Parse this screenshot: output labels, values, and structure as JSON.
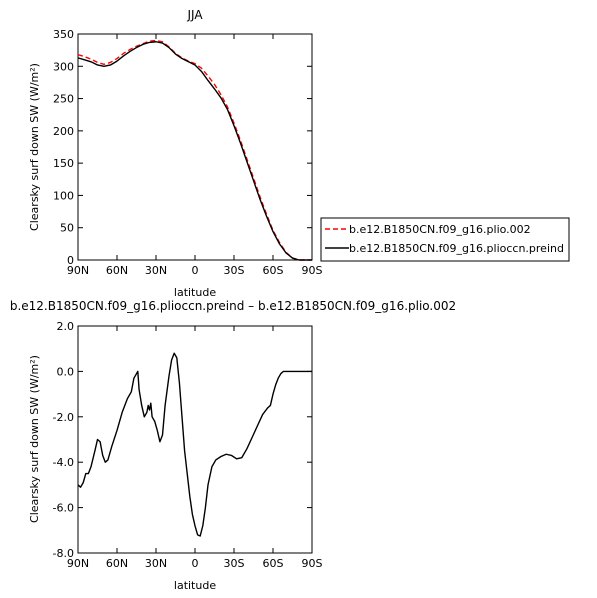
{
  "chart_data": [
    {
      "type": "line",
      "title": "JJA",
      "xlabel": "latitude",
      "ylabel": "Clearsky surf down SW (W/m²)",
      "xlim": [
        90,
        -90
      ],
      "ylim": [
        0,
        350
      ],
      "x_ticks": [
        90,
        60,
        30,
        0,
        -30,
        -60,
        -90
      ],
      "x_tick_labels": [
        "90N",
        "60N",
        "30N",
        "0",
        "30S",
        "60S",
        "90S"
      ],
      "y_ticks": [
        0,
        50,
        100,
        150,
        200,
        250,
        300,
        350
      ],
      "y_tick_labels": [
        "0",
        "50",
        "100",
        "150",
        "200",
        "250",
        "300",
        "350"
      ],
      "grid": false,
      "legend_position": "right",
      "series": [
        {
          "name": "b.e12.B1850CN.f09_g16.plio.002",
          "color": "#ff0000",
          "style": "dashed",
          "points": [
            [
              90,
              318
            ],
            [
              85,
              315
            ],
            [
              80,
              311
            ],
            [
              75,
              306
            ],
            [
              70,
              303
            ],
            [
              65,
              306
            ],
            [
              60,
              312
            ],
            [
              55,
              320
            ],
            [
              50,
              326
            ],
            [
              45,
              331
            ],
            [
              40,
              335
            ],
            [
              35,
              339
            ],
            [
              30,
              340
            ],
            [
              25,
              338
            ],
            [
              20,
              330
            ],
            [
              15,
              320
            ],
            [
              10,
              313
            ],
            [
              5,
              308
            ],
            [
              0,
              304
            ],
            [
              -5,
              297
            ],
            [
              -10,
              285
            ],
            [
              -15,
              272
            ],
            [
              -20,
              256
            ],
            [
              -25,
              237
            ],
            [
              -30,
              212
            ],
            [
              -35,
              185
            ],
            [
              -40,
              156
            ],
            [
              -45,
              127
            ],
            [
              -50,
              98
            ],
            [
              -55,
              71
            ],
            [
              -60,
              46
            ],
            [
              -65,
              27
            ],
            [
              -70,
              12
            ],
            [
              -75,
              3
            ],
            [
              -80,
              0
            ],
            [
              -85,
              0
            ],
            [
              -90,
              0
            ]
          ]
        },
        {
          "name": "b.e12.B1850CN.f09_g16.plioccn.preind",
          "color": "#000000",
          "style": "solid",
          "points": [
            [
              90,
              313
            ],
            [
              85,
              310
            ],
            [
              80,
              307
            ],
            [
              75,
              302
            ],
            [
              70,
              300
            ],
            [
              65,
              302
            ],
            [
              60,
              308
            ],
            [
              55,
              316
            ],
            [
              50,
              323
            ],
            [
              45,
              329
            ],
            [
              40,
              334
            ],
            [
              35,
              337
            ],
            [
              30,
              338
            ],
            [
              25,
              336
            ],
            [
              20,
              329
            ],
            [
              15,
              319
            ],
            [
              10,
              312
            ],
            [
              5,
              307
            ],
            [
              0,
              302
            ],
            [
              -5,
              292
            ],
            [
              -10,
              278
            ],
            [
              -15,
              265
            ],
            [
              -20,
              251
            ],
            [
              -25,
              233
            ],
            [
              -30,
              208
            ],
            [
              -35,
              181
            ],
            [
              -40,
              152
            ],
            [
              -45,
              123
            ],
            [
              -50,
              94
            ],
            [
              -55,
              68
            ],
            [
              -60,
              44
            ],
            [
              -65,
              25
            ],
            [
              -70,
              11
            ],
            [
              -75,
              3
            ],
            [
              -80,
              0
            ],
            [
              -85,
              0
            ],
            [
              -90,
              0
            ]
          ]
        }
      ]
    },
    {
      "type": "line",
      "title": "b.e12.B1850CN.f09_g16.plioccn.preind – b.e12.B1850CN.f09_g16.plio.002",
      "xlabel": "latitude",
      "ylabel": "Clearsky surf down SW (W/m²)",
      "xlim": [
        90,
        -90
      ],
      "ylim": [
        -8,
        2
      ],
      "x_ticks": [
        90,
        60,
        30,
        0,
        -30,
        -60,
        -90
      ],
      "x_tick_labels": [
        "90N",
        "60N",
        "30N",
        "0",
        "30S",
        "60S",
        "90S"
      ],
      "y_ticks": [
        -8,
        -6,
        -4,
        -2,
        0,
        2
      ],
      "y_tick_labels": [
        "-8.0",
        "-6.0",
        "-4.0",
        "-2.0",
        "0.0",
        "2.0"
      ],
      "grid": false,
      "series": [
        {
          "color": "#000000",
          "style": "solid",
          "points": [
            [
              90,
              -5.0
            ],
            [
              88,
              -5.1
            ],
            [
              86,
              -4.9
            ],
            [
              84,
              -4.5
            ],
            [
              82,
              -4.5
            ],
            [
              80,
              -4.2
            ],
            [
              77,
              -3.5
            ],
            [
              75,
              -3.0
            ],
            [
              73,
              -3.1
            ],
            [
              71,
              -3.7
            ],
            [
              69,
              -4.0
            ],
            [
              67,
              -3.9
            ],
            [
              64,
              -3.3
            ],
            [
              60,
              -2.6
            ],
            [
              56,
              -1.8
            ],
            [
              52,
              -1.2
            ],
            [
              49,
              -0.9
            ],
            [
              47,
              -0.3
            ],
            [
              45,
              -0.1
            ],
            [
              44,
              0.0
            ],
            [
              43,
              -0.8
            ],
            [
              41,
              -1.5
            ],
            [
              39,
              -2.0
            ],
            [
              37,
              -1.8
            ],
            [
              36,
              -1.5
            ],
            [
              35,
              -1.7
            ],
            [
              34,
              -1.4
            ],
            [
              33,
              -2.0
            ],
            [
              31,
              -2.2
            ],
            [
              29,
              -2.6
            ],
            [
              27,
              -3.1
            ],
            [
              25,
              -2.8
            ],
            [
              23,
              -1.5
            ],
            [
              20,
              -0.2
            ],
            [
              18,
              0.5
            ],
            [
              16,
              0.8
            ],
            [
              14,
              0.6
            ],
            [
              12,
              -0.5
            ],
            [
              10,
              -2.0
            ],
            [
              8,
              -3.5
            ],
            [
              6,
              -4.5
            ],
            [
              4,
              -5.5
            ],
            [
              2,
              -6.3
            ],
            [
              0,
              -6.8
            ],
            [
              -2,
              -7.2
            ],
            [
              -4,
              -7.25
            ],
            [
              -6,
              -6.8
            ],
            [
              -8,
              -6.0
            ],
            [
              -10,
              -5.0
            ],
            [
              -13,
              -4.2
            ],
            [
              -16,
              -3.9
            ],
            [
              -20,
              -3.75
            ],
            [
              -24,
              -3.65
            ],
            [
              -28,
              -3.7
            ],
            [
              -32,
              -3.85
            ],
            [
              -36,
              -3.8
            ],
            [
              -40,
              -3.4
            ],
            [
              -44,
              -2.9
            ],
            [
              -48,
              -2.4
            ],
            [
              -52,
              -1.9
            ],
            [
              -56,
              -1.6
            ],
            [
              -58,
              -1.5
            ],
            [
              -60,
              -1.0
            ],
            [
              -62,
              -0.6
            ],
            [
              -64,
              -0.3
            ],
            [
              -66,
              -0.1
            ],
            [
              -68,
              0.0
            ],
            [
              -72,
              0.0
            ],
            [
              -80,
              0.0
            ],
            [
              -90,
              0.0
            ]
          ]
        }
      ]
    }
  ]
}
